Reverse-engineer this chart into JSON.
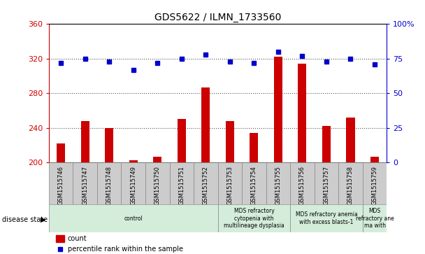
{
  "title": "GDS5622 / ILMN_1733560",
  "samples": [
    "GSM1515746",
    "GSM1515747",
    "GSM1515748",
    "GSM1515749",
    "GSM1515750",
    "GSM1515751",
    "GSM1515752",
    "GSM1515753",
    "GSM1515754",
    "GSM1515755",
    "GSM1515756",
    "GSM1515757",
    "GSM1515758",
    "GSM1515759"
  ],
  "counts": [
    222,
    248,
    240,
    203,
    207,
    250,
    287,
    248,
    234,
    322,
    314,
    242,
    252,
    207
  ],
  "percentiles": [
    72,
    75,
    73,
    67,
    72,
    75,
    78,
    73,
    72,
    80,
    77,
    73,
    75,
    71
  ],
  "ylim_left": [
    200,
    360
  ],
  "ylim_right": [
    0,
    100
  ],
  "yticks_left": [
    200,
    240,
    280,
    320,
    360
  ],
  "yticks_right": [
    0,
    25,
    50,
    75,
    100
  ],
  "bar_color": "#cc0000",
  "dot_color": "#0000cc",
  "bar_width": 0.35,
  "disease_groups": [
    {
      "label": "control",
      "start": 0,
      "end": 7,
      "color": "#d4edda"
    },
    {
      "label": "MDS refractory\ncytopenia with\nmultilineage dysplasia",
      "start": 7,
      "end": 10,
      "color": "#d4edda"
    },
    {
      "label": "MDS refractory anemia\nwith excess blasts-1",
      "start": 10,
      "end": 13,
      "color": "#d4edda"
    },
    {
      "label": "MDS\nrefractory ane\nma with",
      "start": 13,
      "end": 14,
      "color": "#d4edda"
    }
  ],
  "legend_count_label": "count",
  "legend_percentile_label": "percentile rank within the sample",
  "disease_state_label": "disease state",
  "ylabel_left_color": "#cc0000",
  "ylabel_right_color": "#0000cc",
  "grid_color": "#555555",
  "bg_color": "#ffffff",
  "tick_area_color": "#cccccc",
  "border_color": "#000000"
}
